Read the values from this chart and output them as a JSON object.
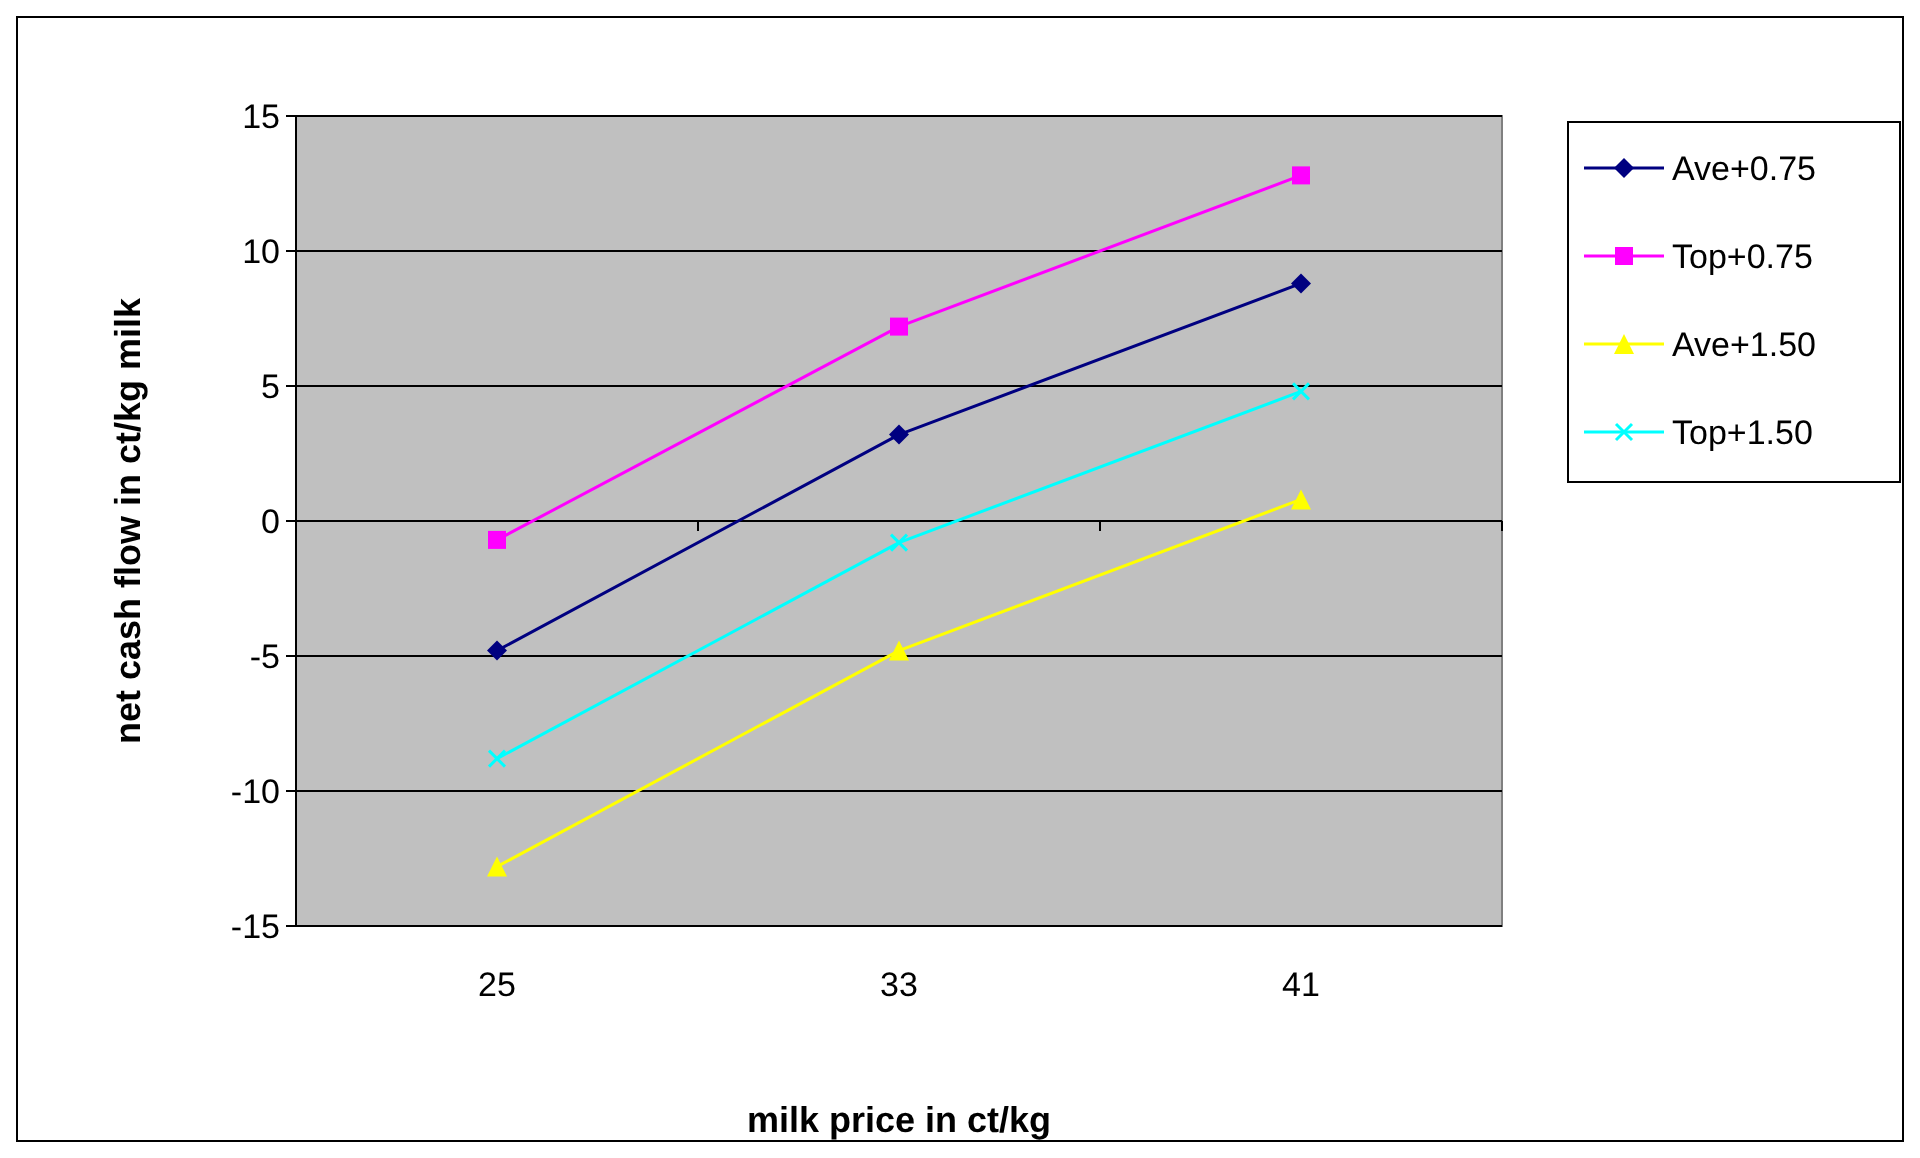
{
  "chart_data": {
    "type": "line",
    "xlabel": "milk price in ct/kg",
    "ylabel": "net cash flow in ct/kg milk",
    "categories": [
      "25",
      "33",
      "41"
    ],
    "series": [
      {
        "name": "Ave+0.75",
        "color": "#000080",
        "marker": "diamond",
        "values": [
          -4.8,
          3.2,
          8.8
        ]
      },
      {
        "name": "Top+0.75",
        "color": "#ff00ff",
        "marker": "square",
        "values": [
          -0.7,
          7.2,
          12.8
        ]
      },
      {
        "name": "Ave+1.50",
        "color": "#ffff00",
        "marker": "triangle",
        "values": [
          -12.8,
          -4.8,
          0.8
        ]
      },
      {
        "name": "Top+1.50",
        "color": "#00ffff",
        "marker": "cross",
        "values": [
          -8.8,
          -0.8,
          4.8
        ]
      }
    ],
    "ylim": [
      -15,
      15
    ],
    "yticks": [
      -15,
      -10,
      -5,
      0,
      5,
      10,
      15
    ],
    "grid": "y",
    "legend": "right"
  }
}
